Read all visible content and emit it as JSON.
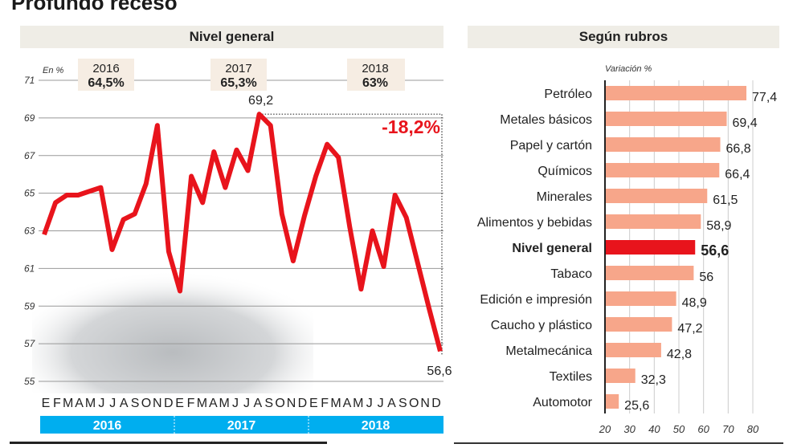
{
  "title": "Profundo receso",
  "chart_data": [
    {
      "type": "line",
      "title": "Nivel general",
      "ylabel": "En %",
      "ylim": [
        55,
        71
      ],
      "yticks": [
        71,
        69,
        67,
        65,
        63,
        61,
        59,
        57,
        55
      ],
      "grid": true,
      "month_labels": [
        "E",
        "F",
        "M",
        "A",
        "M",
        "J",
        "J",
        "A",
        "S",
        "O",
        "N",
        "D",
        "E",
        "F",
        "M",
        "A",
        "M",
        "J",
        "J",
        "A",
        "S",
        "O",
        "N",
        "D",
        "E",
        "F",
        "M",
        "A",
        "M",
        "J",
        "J",
        "A",
        "S",
        "O",
        "N",
        "D"
      ],
      "year_labels": [
        "2016",
        "2017",
        "2018"
      ],
      "year_averages": [
        {
          "year": "2016",
          "value": "64,5%"
        },
        {
          "year": "2017",
          "value": "65,3%"
        },
        {
          "year": "2018",
          "value": "63%"
        }
      ],
      "values": [
        62.8,
        64.5,
        64.9,
        64.9,
        65.1,
        65.3,
        62.0,
        63.6,
        63.9,
        65.5,
        68.6,
        61.9,
        59.8,
        65.9,
        64.5,
        67.2,
        65.3,
        67.3,
        66.2,
        69.2,
        68.6,
        63.9,
        61.4,
        63.8,
        65.9,
        67.6,
        66.9,
        63.2,
        59.9,
        63.0,
        61.1,
        64.9,
        63.7,
        61.3,
        58.9,
        56.6
      ],
      "annotations": {
        "peak_label": "69,2",
        "last_label": "56,6",
        "change_label": "-18,2%"
      },
      "colors": {
        "line": "#e8141c",
        "year_bar": "#00aeef",
        "year_box": "#f6ede3",
        "change": "#e8141c"
      }
    },
    {
      "type": "bar",
      "orientation": "horizontal",
      "title": "Según rubros",
      "xlabel": "Variación %",
      "xlim": [
        20,
        80
      ],
      "xticks": [
        20,
        30,
        40,
        50,
        60,
        70,
        80
      ],
      "categories": [
        "Petróleo",
        "Metales básicos",
        "Papel y cartón",
        "Químicos",
        "Minerales",
        "Alimentos y bebidas",
        "Nivel general",
        "Tabaco",
        "Edición e impresión",
        "Caucho y plástico",
        "Metalmecánica",
        "Textiles",
        "Automotor"
      ],
      "values": [
        77.4,
        69.4,
        66.8,
        66.4,
        61.5,
        58.9,
        56.6,
        56,
        48.9,
        47.2,
        42.8,
        32.3,
        25.6
      ],
      "value_labels": [
        "77,4",
        "69,4",
        "66,8",
        "66,4",
        "61,5",
        "58,9",
        "56,6",
        "56",
        "48,9",
        "47,2",
        "42,8",
        "32,3",
        "25,6"
      ],
      "highlight": "Nivel general",
      "colors": {
        "bar": "#f7a68a",
        "highlight": "#e8141c"
      }
    }
  ]
}
